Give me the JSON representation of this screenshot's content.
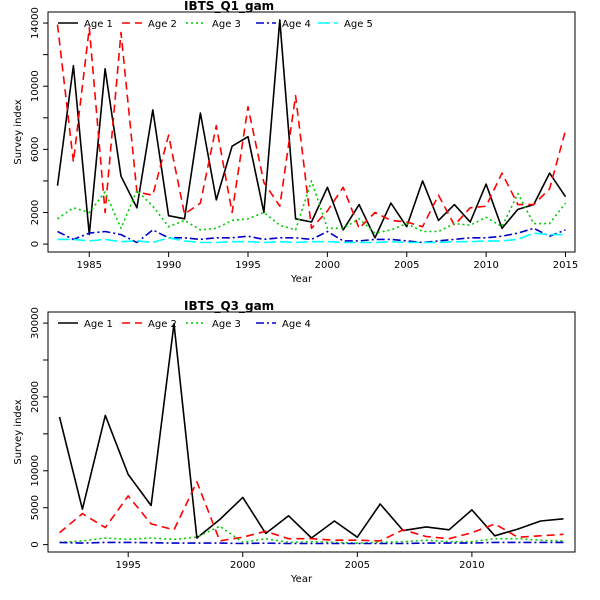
{
  "colors": {
    "Age 1": "#000000",
    "Age 2": "#ff0000",
    "Age 3": "#00cc00",
    "Age 4": "#0000cc",
    "Age 5": "#00ffff"
  },
  "chart_data": [
    {
      "type": "line",
      "title": "IBTS_Q1_gam",
      "xlabel": "Year",
      "ylabel": "Survey index",
      "xlim": [
        1982.4,
        2015.6
      ],
      "ylim": [
        -500,
        14700
      ],
      "xticks": [
        1985,
        1990,
        1995,
        2000,
        2005,
        2010,
        2015
      ],
      "yticks": [
        0,
        2000,
        6000,
        10000,
        14000
      ],
      "yticks_minor": [
        4000,
        8000,
        12000
      ],
      "legend": "top",
      "x": [
        1983,
        1984,
        1985,
        1986,
        1987,
        1988,
        1989,
        1990,
        1991,
        1992,
        1993,
        1994,
        1995,
        1996,
        1997,
        1998,
        1999,
        2000,
        2001,
        2002,
        2003,
        2004,
        2005,
        2006,
        2007,
        2008,
        2009,
        2010,
        2011,
        2012,
        2013,
        2014,
        2015
      ],
      "series": [
        {
          "name": "Age 1",
          "dash": "",
          "values": [
            3700,
            11300,
            600,
            11100,
            4300,
            2300,
            8500,
            1800,
            1600,
            8300,
            2800,
            6200,
            6800,
            2000,
            14200,
            1600,
            1400,
            3600,
            900,
            2500,
            400,
            2600,
            1100,
            4000,
            1500,
            2500,
            1400,
            3800,
            1000,
            2200,
            2500,
            4500,
            3000
          ]
        },
        {
          "name": "Age 2",
          "dash": "8,5",
          "values": [
            13900,
            5200,
            13700,
            2000,
            13400,
            3300,
            3100,
            6900,
            1900,
            2600,
            7500,
            2000,
            8700,
            3900,
            2400,
            9400,
            1000,
            2100,
            3600,
            1000,
            2000,
            1500,
            1400,
            1100,
            3100,
            1200,
            2300,
            2400,
            4500,
            2500,
            2500,
            3500,
            7200
          ]
        },
        {
          "name": "Age 3",
          "dash": "2,3",
          "values": [
            1600,
            2300,
            2000,
            3300,
            1000,
            3400,
            2400,
            1100,
            1500,
            900,
            1000,
            1500,
            1600,
            2000,
            1200,
            900,
            4000,
            1000,
            1000,
            1600,
            700,
            900,
            1300,
            800,
            800,
            1300,
            1200,
            1700,
            1100,
            3200,
            1300,
            1300,
            2600
          ]
        },
        {
          "name": "Age 4",
          "dash": "8,3,2,3",
          "values": [
            800,
            300,
            700,
            800,
            600,
            100,
            900,
            400,
            400,
            300,
            400,
            400,
            500,
            300,
            400,
            400,
            300,
            800,
            200,
            200,
            300,
            300,
            200,
            100,
            200,
            300,
            400,
            400,
            500,
            700,
            1000,
            500,
            900
          ]
        },
        {
          "name": "Age 5",
          "dash": "12,4",
          "values": [
            300,
            300,
            200,
            300,
            150,
            200,
            100,
            400,
            200,
            100,
            100,
            150,
            150,
            100,
            150,
            100,
            150,
            150,
            100,
            100,
            100,
            150,
            100,
            100,
            100,
            150,
            150,
            200,
            200,
            300,
            700,
            600,
            600
          ]
        }
      ]
    },
    {
      "type": "line",
      "title": "IBTS_Q3_gam",
      "xlabel": "Year",
      "ylabel": "Survey index",
      "xlim": [
        1991.5,
        2014.5
      ],
      "ylim": [
        -1000,
        31500
      ],
      "xticks": [
        1995,
        2000,
        2005,
        2010
      ],
      "yticks": [
        0,
        5000,
        10000,
        20000,
        30000
      ],
      "yticks_minor": [
        15000,
        25000
      ],
      "legend": "top",
      "x": [
        1992,
        1993,
        1994,
        1995,
        1996,
        1997,
        1998,
        1999,
        2000,
        2001,
        2002,
        2003,
        2004,
        2005,
        2006,
        2007,
        2008,
        2009,
        2010,
        2011,
        2012,
        2013,
        2014
      ],
      "series": [
        {
          "name": "Age 1",
          "dash": "",
          "values": [
            17300,
            4800,
            17500,
            9500,
            5300,
            29900,
            900,
            3400,
            6400,
            1500,
            3900,
            900,
            3200,
            1000,
            5500,
            1900,
            2400,
            2000,
            4700,
            1200,
            2100,
            3200,
            3500
          ]
        },
        {
          "name": "Age 2",
          "dash": "8,5",
          "values": [
            1600,
            4200,
            2300,
            6600,
            2800,
            2000,
            8500,
            500,
            1000,
            1800,
            800,
            800,
            600,
            600,
            500,
            2000,
            1100,
            800,
            1600,
            2800,
            1000,
            1200,
            1400
          ]
        },
        {
          "name": "Age 3",
          "dash": "2,3",
          "values": [
            300,
            500,
            900,
            700,
            900,
            700,
            1000,
            2500,
            300,
            800,
            300,
            400,
            300,
            200,
            300,
            400,
            600,
            400,
            400,
            800,
            800,
            600,
            500
          ]
        },
        {
          "name": "Age 4",
          "dash": "8,3,2,3",
          "values": [
            300,
            200,
            300,
            300,
            250,
            200,
            200,
            200,
            150,
            200,
            150,
            150,
            150,
            150,
            150,
            150,
            200,
            200,
            200,
            300,
            300,
            300,
            300
          ]
        }
      ]
    }
  ]
}
